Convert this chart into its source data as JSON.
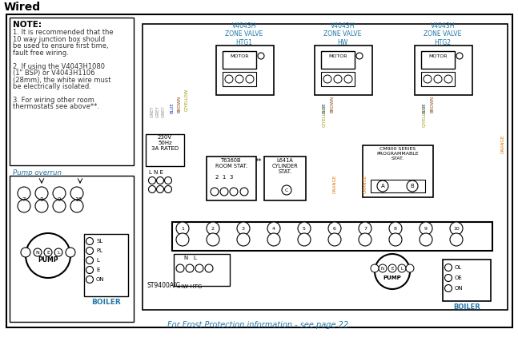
{
  "title": "Wired",
  "bg_color": "#ffffff",
  "note_title": "NOTE:",
  "note_lines": [
    "1. It is recommended that the",
    "10 way junction box should",
    "be used to ensure first time,",
    "fault free wiring.",
    "",
    "2. If using the V4043H1080",
    "(1\" BSP) or V4043H1106",
    "(28mm), the white wire must",
    "be electrically isolated.",
    "",
    "3. For wiring other room",
    "thermostats see above**."
  ],
  "pump_overrun_label": "Pump overrun",
  "frost_text": "For Frost Protection information - see page 22",
  "zone_labels": [
    "V4043H\nZONE VALVE\nHTG1",
    "V4043H\nZONE VALVE\nHW",
    "V4043H\nZONE VALVE\nHTG2"
  ],
  "supply_label": "230V\n50Hz\n3A RATED",
  "lne_label": "L N E",
  "t6360b_label": "T6360B\nROOM STAT.",
  "l641a_label": "L641A\nCYLINDER\nSTAT.",
  "cm900_label": "CM900 SERIES\nPROGRAMMABLE\nSTAT.",
  "st9400_label": "ST9400A/C",
  "hw_htg_label": "HW HTG",
  "boiler_label": "BOILER",
  "motor_label": "MOTOR",
  "colors": {
    "grey": "#888888",
    "blue": "#2244cc",
    "brown": "#8B4513",
    "gyellow": "#999900",
    "orange": "#DD7700",
    "black": "#000000",
    "cyan_text": "#2277aa",
    "light_grey": "#cccccc"
  }
}
